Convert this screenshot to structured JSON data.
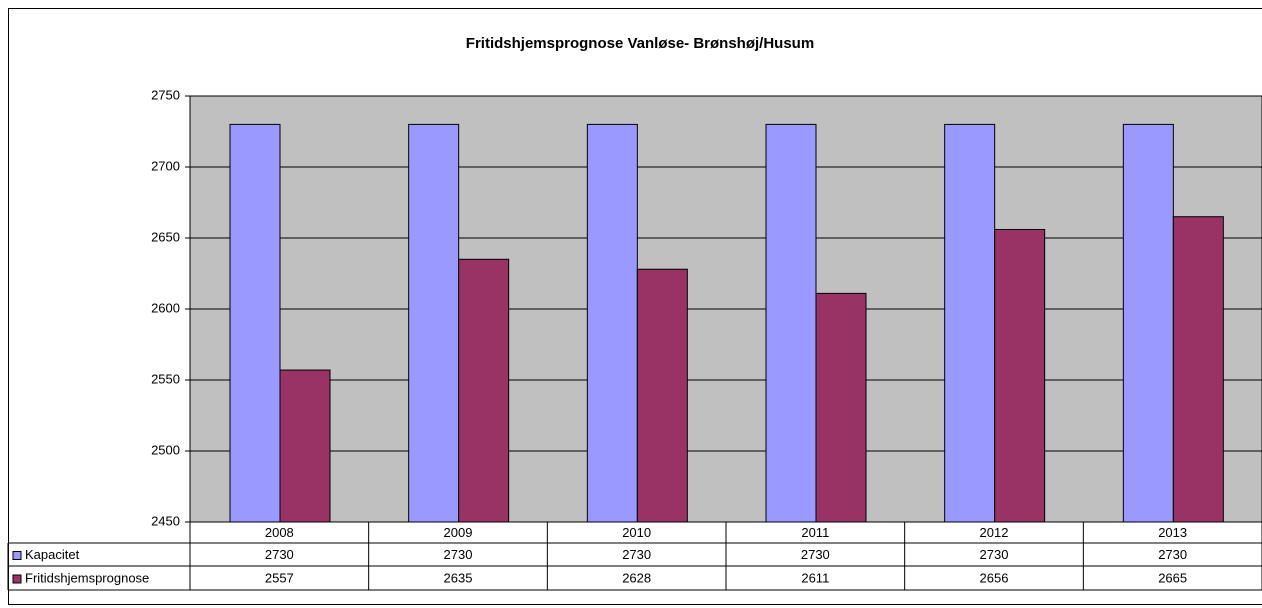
{
  "chart_data": {
    "type": "bar",
    "title": "Fritidshjemsprognose Vanløse- Brønshøj/Husum",
    "categories": [
      "2008",
      "2009",
      "2010",
      "2011",
      "2012",
      "2013"
    ],
    "series": [
      {
        "name": "Kapacitet",
        "color": "#9999ff",
        "values": [
          2730,
          2730,
          2730,
          2730,
          2730,
          2730
        ]
      },
      {
        "name": "Fritidshjemsprognose",
        "color": "#993366",
        "values": [
          2557,
          2635,
          2628,
          2611,
          2656,
          2665
        ]
      }
    ],
    "ylim": [
      2450,
      2750
    ],
    "yticks": [
      2450,
      2500,
      2550,
      2600,
      2650,
      2700,
      2750
    ],
    "grid": true,
    "plot_background": "#c0c0c0"
  }
}
